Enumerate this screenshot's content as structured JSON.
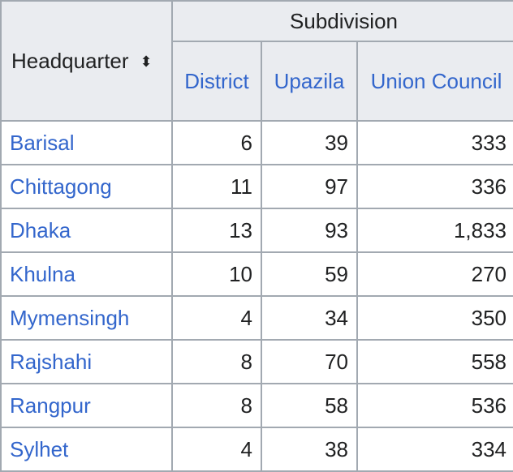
{
  "table": {
    "headquarter_header": "Headquarter",
    "sort_icon": "⬍",
    "subdivision_header": "Subdivision",
    "column_headers": [
      "District",
      "Upazila",
      "Union Council"
    ],
    "rows": [
      {
        "headquarter": "Barisal",
        "district": "6",
        "upazila": "39",
        "union_council": "333"
      },
      {
        "headquarter": "Chittagong",
        "district": "11",
        "upazila": "97",
        "union_council": "336"
      },
      {
        "headquarter": "Dhaka",
        "district": "13",
        "upazila": "93",
        "union_council": "1,833"
      },
      {
        "headquarter": "Khulna",
        "district": "10",
        "upazila": "59",
        "union_council": "270"
      },
      {
        "headquarter": "Mymensingh",
        "district": "4",
        "upazila": "34",
        "union_council": "350"
      },
      {
        "headquarter": "Rajshahi",
        "district": "8",
        "upazila": "70",
        "union_council": "558"
      },
      {
        "headquarter": "Rangpur",
        "district": "8",
        "upazila": "58",
        "union_council": "536"
      },
      {
        "headquarter": "Sylhet",
        "district": "4",
        "upazila": "38",
        "union_council": "334"
      }
    ]
  },
  "colors": {
    "link": "#3366cc",
    "header_bg": "#eaecf0",
    "border": "#a2a9b1",
    "text": "#202122"
  }
}
